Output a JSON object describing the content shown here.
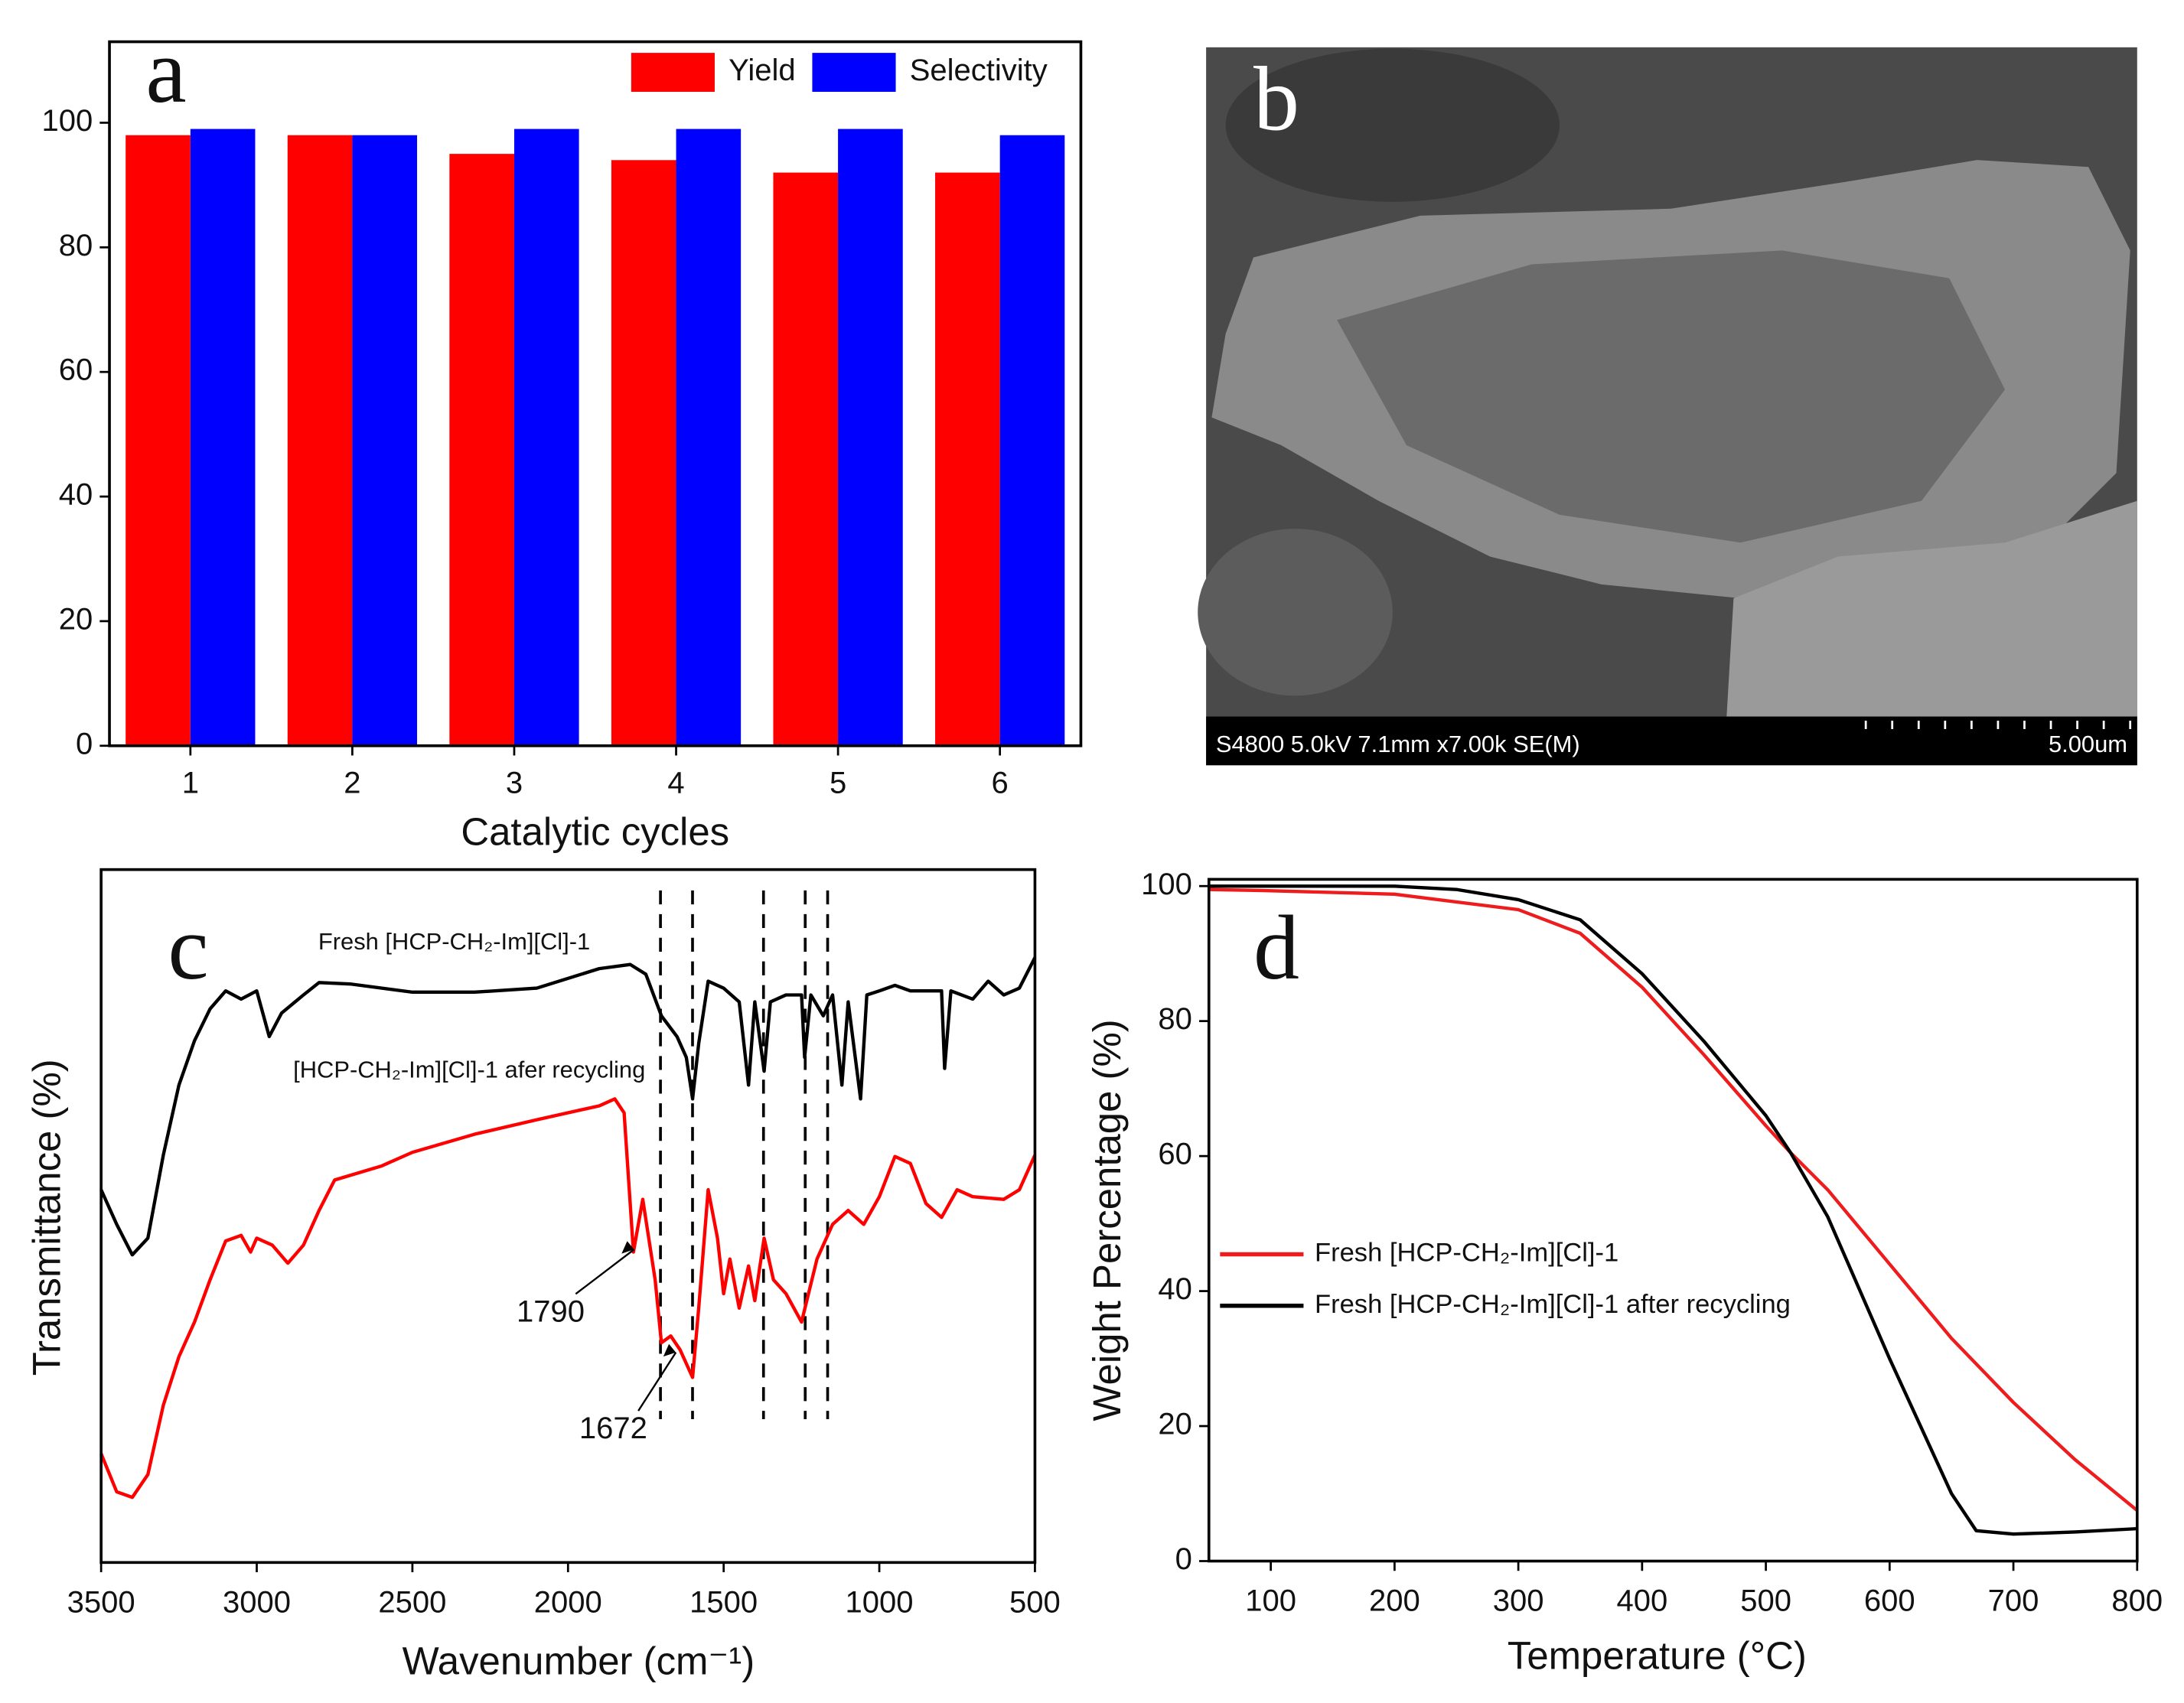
{
  "chart_data": [
    {
      "type": "bar",
      "label": "a",
      "xlabel": "Catalytic cycles",
      "categories": [
        "1",
        "2",
        "3",
        "4",
        "5",
        "6"
      ],
      "series": [
        {
          "name": "Yield",
          "color": "#ff0000",
          "values": [
            98,
            98,
            95,
            94,
            92,
            92
          ]
        },
        {
          "name": "Selectivity",
          "color": "#0000ff",
          "values": [
            99,
            98,
            99,
            99,
            99,
            98
          ]
        }
      ],
      "ylim": [
        0,
        113
      ],
      "yticks": [
        0,
        20,
        40,
        60,
        80,
        100
      ],
      "legend": "upper right"
    },
    {
      "type": "line",
      "label": "c",
      "xlabel": "Wavenumber (cm⁻¹)",
      "ylabel": "Transmittance (%)",
      "xlim": [
        3500,
        500
      ],
      "xticks": [
        3500,
        3000,
        2500,
        2000,
        1500,
        1000,
        500
      ],
      "ylim": [
        0,
        100
      ],
      "reference_lines": [
        1703,
        1600,
        1372,
        1238,
        1166
      ],
      "annotations": [
        "1790",
        "1672"
      ],
      "series": [
        {
          "name": "Fresh [HCP-CH₂-Im][Cl]-1",
          "color": "#000000",
          "x": [
            3500,
            3450,
            3400,
            3350,
            3300,
            3250,
            3200,
            3150,
            3100,
            3050,
            3000,
            2960,
            2920,
            2850,
            2800,
            2700,
            2500,
            2300,
            2100,
            1900,
            1800,
            1750,
            1700,
            1650,
            1620,
            1600,
            1580,
            1550,
            1500,
            1450,
            1420,
            1400,
            1370,
            1350,
            1300,
            1250,
            1240,
            1220,
            1180,
            1150,
            1120,
            1100,
            1060,
            1040,
            1000,
            950,
            900,
            800,
            790,
            770,
            700,
            650,
            600,
            550,
            500
          ],
          "values": [
            53.8,
            48.8,
            44.4,
            46.8,
            58.8,
            68.9,
            75.3,
            79.9,
            82.5,
            81.3,
            82.5,
            75.9,
            79.3,
            81.9,
            83.7,
            83.5,
            82.3,
            82.3,
            82.9,
            85.7,
            86.3,
            84.9,
            78.9,
            75.9,
            72.9,
            66.9,
            74.9,
            83.9,
            82.9,
            80.9,
            68.9,
            80.9,
            70.9,
            80.9,
            81.9,
            81.9,
            72.9,
            81.9,
            78.9,
            81.9,
            68.9,
            80.9,
            66.9,
            81.9,
            82.5,
            83.3,
            82.5,
            82.5,
            71.3,
            82.5,
            81.3,
            83.9,
            81.9,
            82.9,
            87.3
          ]
        },
        {
          "name": "[HCP-CH₂-Im][Cl]-1 afer recycling",
          "color": "#ff0000",
          "x": [
            3500,
            3450,
            3400,
            3350,
            3300,
            3250,
            3200,
            3150,
            3100,
            3050,
            3020,
            3000,
            2950,
            2900,
            2850,
            2800,
            2750,
            2600,
            2500,
            2300,
            2100,
            1900,
            1850,
            1820,
            1790,
            1760,
            1720,
            1700,
            1670,
            1640,
            1600,
            1580,
            1550,
            1520,
            1500,
            1480,
            1450,
            1420,
            1400,
            1370,
            1340,
            1300,
            1250,
            1200,
            1150,
            1100,
            1050,
            1000,
            950,
            900,
            850,
            800,
            750,
            700,
            600,
            550,
            500
          ],
          "values": [
            15.7,
            10.2,
            9.4,
            12.7,
            22.7,
            29.7,
            34.7,
            40.8,
            46.4,
            47.2,
            44.8,
            46.8,
            45.8,
            43.2,
            45.8,
            50.8,
            55.2,
            57.2,
            59.2,
            61.8,
            63.9,
            65.9,
            66.9,
            64.9,
            44.8,
            52.4,
            40.8,
            31.7,
            32.7,
            30.7,
            26.7,
            36.7,
            53.8,
            46.8,
            38.8,
            43.8,
            36.7,
            42.8,
            37.8,
            46.8,
            40.8,
            38.8,
            34.7,
            43.8,
            48.8,
            50.8,
            48.8,
            52.8,
            58.6,
            57.6,
            51.8,
            49.8,
            53.8,
            52.8,
            52.4,
            53.8,
            58.8
          ]
        }
      ]
    },
    {
      "type": "line",
      "label": "d",
      "xlabel": "Temperature (°C)",
      "ylabel": "Weight Percentage (%)",
      "xlim": [
        50,
        800
      ],
      "xticks": [
        100,
        200,
        300,
        400,
        500,
        600,
        700,
        800
      ],
      "ylim": [
        0,
        101
      ],
      "yticks": [
        0,
        20,
        40,
        60,
        80,
        100
      ],
      "legend": "center left",
      "series": [
        {
          "name": "Fresh [HCP-CH₂-Im][Cl]-1",
          "color": "#ee1c1c",
          "x": [
            50,
            100,
            200,
            300,
            350,
            400,
            450,
            500,
            520,
            550,
            600,
            650,
            700,
            750,
            800
          ],
          "values": [
            99.5,
            99.3,
            98.8,
            96.5,
            93,
            85,
            75,
            64.5,
            60.5,
            55,
            44,
            33,
            23.5,
            15,
            7.5
          ]
        },
        {
          "name": "Fresh [HCP-CH₂-Im][Cl]-1 after recycling",
          "color": "#000000",
          "x": [
            50,
            100,
            200,
            250,
            300,
            350,
            400,
            450,
            500,
            520,
            550,
            600,
            650,
            670,
            700,
            750,
            800
          ],
          "values": [
            100,
            100,
            100,
            99.5,
            98,
            95,
            87,
            77,
            66,
            60.5,
            51,
            30,
            10,
            4.5,
            4,
            4.3,
            4.8
          ]
        }
      ]
    }
  ],
  "image_panel": {
    "label": "b",
    "caption": "S4800 5.0kV 7.1mm x7.00k SE(M)",
    "scale_bar": "5.00um"
  }
}
